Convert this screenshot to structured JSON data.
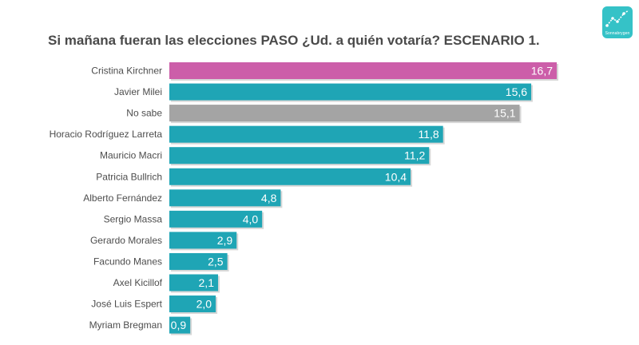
{
  "title": "Si mañana fueran las elecciones PASO ¿Ud. a quién votaría? ESCENARIO 1.",
  "logo_text": "Sonnabrygen",
  "colors": {
    "teal": "#1fa5b5",
    "magenta": "#cc5ea9",
    "gray": "#a4a4a4",
    "label_text": "#4d4d4d",
    "value_text": "#ffffff"
  },
  "chart_data": {
    "type": "bar",
    "orientation": "horizontal",
    "title": "Si mañana fueran las elecciones PASO ¿Ud. a quién votaría? ESCENARIO 1.",
    "categories": [
      "Cristina Kirchner",
      "Javier Milei",
      "No sabe",
      "Horacio Rodríguez Larreta",
      "Mauricio Macri",
      "Patricia Bullrich",
      "Alberto Fernández",
      "Sergio Massa",
      "Gerardo Morales",
      "Facundo Manes",
      "Axel Kicillof",
      "José Luis Espert",
      "Myriam Bregman"
    ],
    "values": [
      16.7,
      15.6,
      15.1,
      11.8,
      11.2,
      10.4,
      4.8,
      4.0,
      2.9,
      2.5,
      2.1,
      2.0,
      0.9
    ],
    "value_labels": [
      "16,7",
      "15,6",
      "15,1",
      "11,8",
      "11,2",
      "10,4",
      "4,8",
      "4,0",
      "2,9",
      "2,5",
      "2,1",
      "2,0",
      "0,9"
    ],
    "bar_colors": [
      "magenta",
      "teal",
      "gray",
      "teal",
      "teal",
      "teal",
      "teal",
      "teal",
      "teal",
      "teal",
      "teal",
      "teal",
      "teal"
    ],
    "xlim": [
      0,
      16.7
    ],
    "grid": false,
    "legend": false
  }
}
